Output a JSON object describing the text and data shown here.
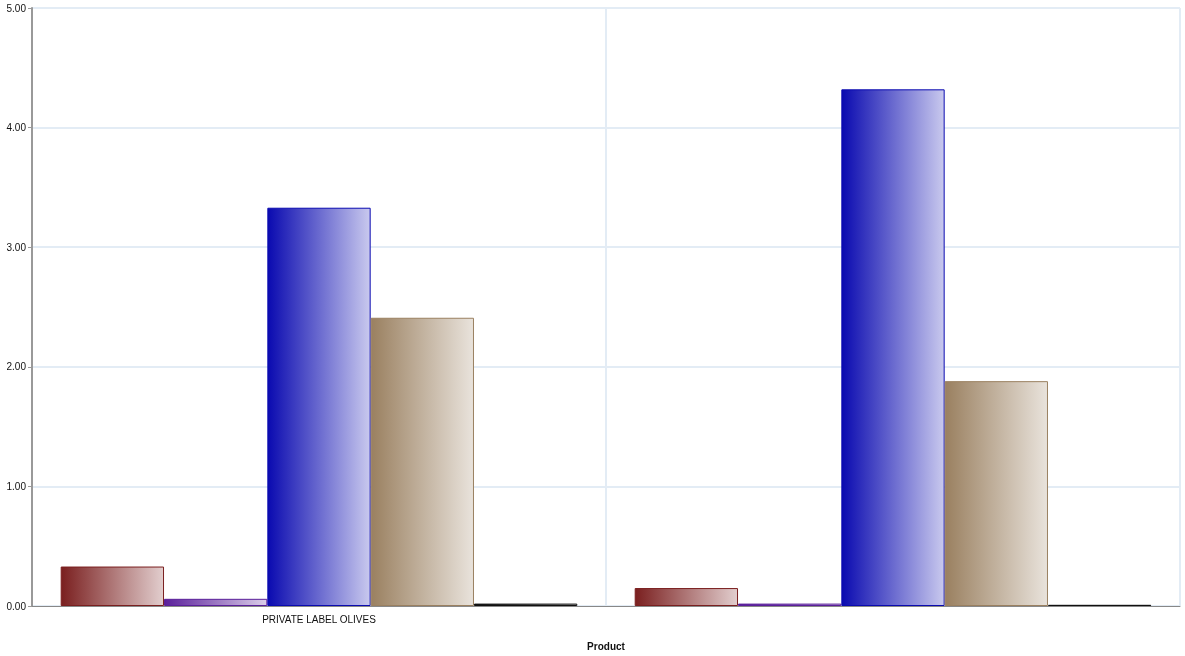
{
  "chart_data": {
    "type": "bar",
    "xlabel": "Product",
    "categories": [
      "PRIVATE LABEL OLIVES",
      null
    ],
    "series": [
      {
        "color": "#7a1f1f",
        "values": [
          0.33,
          0.15
        ]
      },
      {
        "color": "#5a1f9a",
        "values": [
          0.06,
          0.02
        ]
      },
      {
        "color": "#0a0ab0",
        "values": [
          3.33,
          4.32
        ]
      },
      {
        "color": "#9a8060",
        "values": [
          2.41,
          1.88
        ]
      },
      {
        "color": "#111111",
        "values": [
          0.02,
          0.01
        ]
      }
    ],
    "ylim": [
      0,
      5
    ],
    "yticks": [
      {
        "value": 0,
        "label": "0.00"
      },
      {
        "value": 1,
        "label": "1.00"
      },
      {
        "value": 2,
        "label": "2.00"
      },
      {
        "value": 3,
        "label": "3.00"
      },
      {
        "value": 4,
        "label": "4.00"
      },
      {
        "value": 5,
        "label": "5.00"
      }
    ],
    "grid": true
  }
}
